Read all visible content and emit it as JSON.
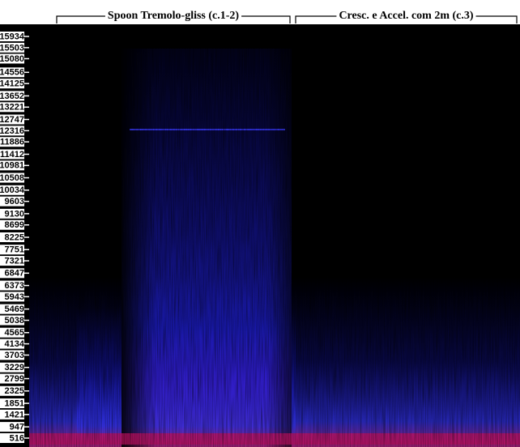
{
  "chart_data": {
    "type": "spectrogram",
    "annotations": [
      "Spoon Tremolo-gliss (c.1-2)",
      "Cresc. e Accel. com 2m (c.3)"
    ],
    "ylim": [
      174,
      16400
    ],
    "yticks": [
      15934,
      15503,
      15080,
      14556,
      14125,
      13652,
      13221,
      12747,
      12316,
      11886,
      11412,
      10981,
      10508,
      10034,
      9603,
      9130,
      8699,
      8225,
      7751,
      7321,
      6847,
      6373,
      5943,
      5469,
      5038,
      4565,
      4134,
      3703,
      3229,
      2799,
      2325,
      1851,
      1421,
      947,
      516
    ]
  }
}
